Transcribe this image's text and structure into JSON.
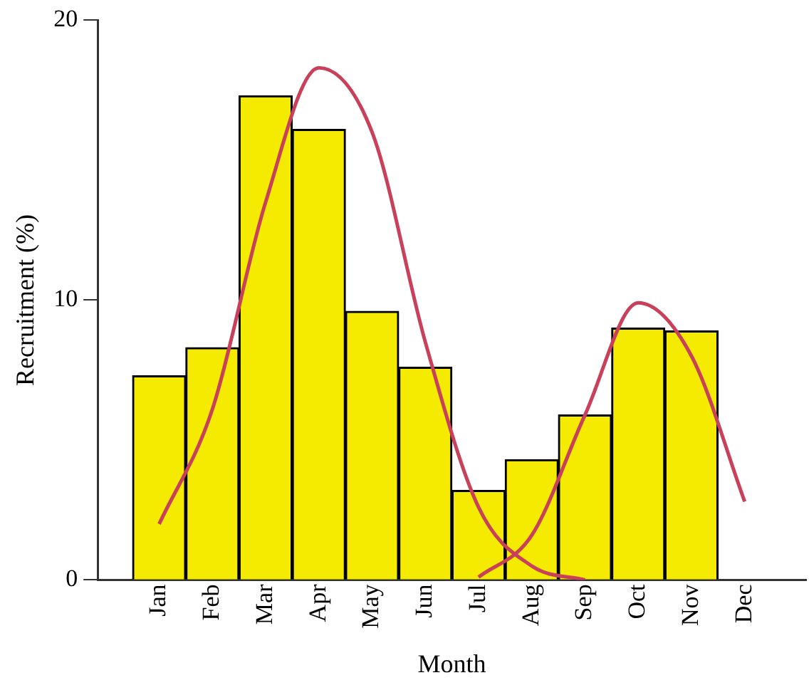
{
  "chart_data": {
    "type": "bar",
    "xlabel": "Month",
    "ylabel": "Recruitment (%)",
    "categories": [
      "Jan",
      "Feb",
      "Mar",
      "Apr",
      "May",
      "Jun",
      "Jul",
      "Aug",
      "Sep",
      "Oct",
      "Nov",
      "Dec"
    ],
    "values": [
      7.3,
      8.3,
      17.3,
      16.1,
      9.6,
      7.6,
      3.2,
      4.3,
      5.9,
      9.0,
      8.9,
      null
    ],
    "color": "#f5eb00",
    "series": [
      {
        "type": "line",
        "color": "#c8405a",
        "values": [
          2.0,
          6.1,
          13.5,
          18.3,
          16.0,
          8.5,
          2.6,
          0.5,
          0,
          null,
          null,
          null
        ]
      },
      {
        "type": "line",
        "color": "#c8405a",
        "values": [
          null,
          null,
          null,
          null,
          null,
          null,
          0.1,
          1.6,
          5.9,
          9.9,
          8.0,
          2.8
        ]
      }
    ],
    "ylim": [
      0,
      20
    ],
    "yticks": [
      0,
      10,
      20
    ],
    "grid": false,
    "legend": false,
    "marker": "none",
    "line_style": "solid"
  }
}
